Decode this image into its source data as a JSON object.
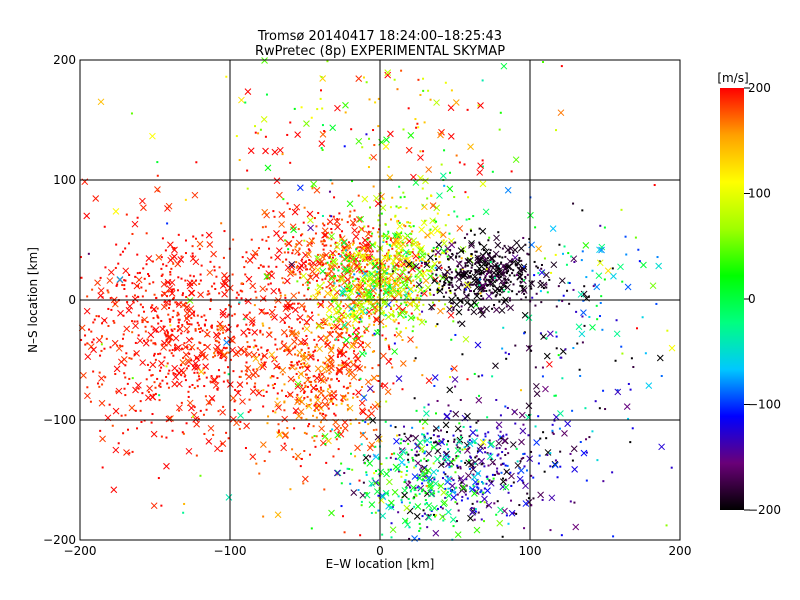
{
  "chart_data": {
    "type": "scatter",
    "title": "Tromsø 20140417 18:24:00–18:25:43",
    "subtitle": "RwPretec (8p) EXPERIMENTAL SKYMAP",
    "xlabel": "E–W location [km]",
    "ylabel": "N–S location [km]",
    "xlim": [
      -200,
      200
    ],
    "ylim": [
      -200,
      200
    ],
    "xticks": [
      "−200",
      "−100",
      "0",
      "100",
      "200"
    ],
    "yticks": [
      "200",
      "100",
      "0",
      "−100",
      "−200"
    ],
    "grid": true,
    "colorbar": {
      "label": "[m/s]",
      "range": [
        -200,
        200
      ],
      "ticks": [
        "200",
        "100",
        "0",
        "−100",
        "−200"
      ],
      "colormap": [
        "#000000",
        "#6a0078",
        "#0000ff",
        "#00c8ff",
        "#00ff80",
        "#00ff00",
        "#a0ff00",
        "#ffff00",
        "#ffa000",
        "#ff0000"
      ]
    },
    "markers": [
      "cross",
      "dot"
    ],
    "clusters": [
      {
        "cx": -130,
        "cy": -30,
        "sx": 45,
        "sy": 45,
        "v": 195,
        "vs": 8,
        "n": 900
      },
      {
        "cx": -40,
        "cy": -60,
        "sx": 25,
        "sy": 35,
        "v": 180,
        "vs": 20,
        "n": 500
      },
      {
        "cx": -30,
        "cy": 40,
        "sx": 25,
        "sy": 20,
        "v": 190,
        "vs": 15,
        "n": 300
      },
      {
        "cx": -5,
        "cy": 10,
        "sx": 20,
        "sy": 20,
        "v": 90,
        "vs": 70,
        "n": 550
      },
      {
        "cx": 20,
        "cy": 40,
        "sx": 20,
        "sy": 25,
        "v": 80,
        "vs": 50,
        "n": 250
      },
      {
        "cx": 70,
        "cy": 20,
        "sx": 20,
        "sy": 15,
        "v": -190,
        "vs": 15,
        "n": 450
      },
      {
        "cx": 60,
        "cy": -140,
        "sx": 30,
        "sy": 25,
        "v": -150,
        "vs": 40,
        "n": 400
      },
      {
        "cx": 20,
        "cy": -150,
        "sx": 25,
        "sy": 25,
        "v": 0,
        "vs": 50,
        "n": 250
      },
      {
        "cx": 110,
        "cy": -60,
        "sx": 40,
        "sy": 50,
        "v": -150,
        "vs": 60,
        "n": 120
      },
      {
        "cx": 0,
        "cy": 130,
        "sx": 50,
        "sy": 40,
        "v": 140,
        "vs": 90,
        "n": 150
      },
      {
        "cx": 130,
        "cy": 20,
        "sx": 30,
        "sy": 25,
        "v": -60,
        "vs": 80,
        "n": 80
      },
      {
        "cx": 0,
        "cy": 0,
        "sx": 110,
        "sy": 110,
        "v": 60,
        "vs": 140,
        "n": 150
      }
    ]
  }
}
